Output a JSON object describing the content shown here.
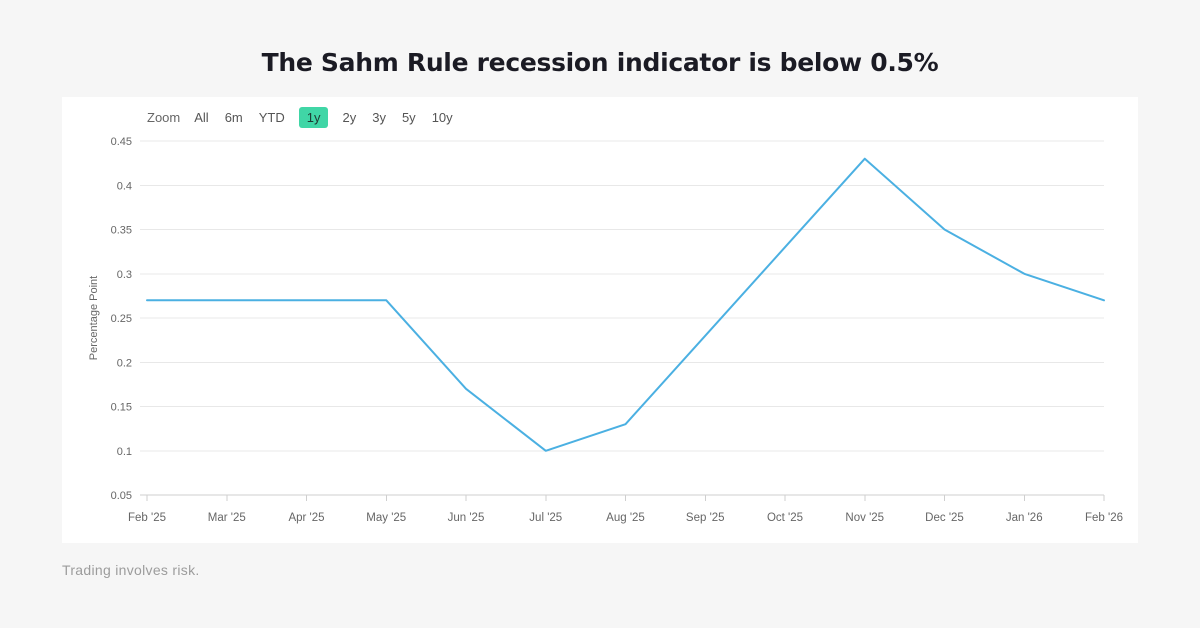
{
  "page": {
    "title": "The Sahm Rule recession indicator is below 0.5%",
    "footer": "Trading involves risk."
  },
  "toolbar": {
    "zoom_label": "Zoom",
    "buttons": [
      "All",
      "6m",
      "YTD",
      "1y",
      "2y",
      "3y",
      "5y",
      "10y"
    ],
    "selected": "1y",
    "selected_bg": "#40d6a6"
  },
  "chart_data": {
    "type": "line",
    "x": [
      "Feb '25",
      "Mar '25",
      "Apr '25",
      "May '25",
      "Jun '25",
      "Jul '25",
      "Aug '25",
      "Sep '25",
      "Oct '25",
      "Nov '25",
      "Dec '25",
      "Jan '26",
      "Feb '26"
    ],
    "series": [
      {
        "name": "Sahm Rule recession indicator",
        "values": [
          0.27,
          0.27,
          0.27,
          0.27,
          0.17,
          0.1,
          0.13,
          0.23,
          0.33,
          0.43,
          0.35,
          0.3,
          0.27
        ]
      }
    ],
    "title": "",
    "xlabel": "",
    "ylabel": "Percentage Point",
    "ylim": [
      0.05,
      0.45
    ],
    "yticks": [
      0.05,
      0.1,
      0.15,
      0.2,
      0.25,
      0.3,
      0.35,
      0.4,
      0.45
    ],
    "grid": "horizontal",
    "legend": "none",
    "line_color": "#4bb0e2",
    "grid_color": "#e8e8e8",
    "axis_color": "#cfcfcf",
    "tick_label_color": "#666666"
  }
}
